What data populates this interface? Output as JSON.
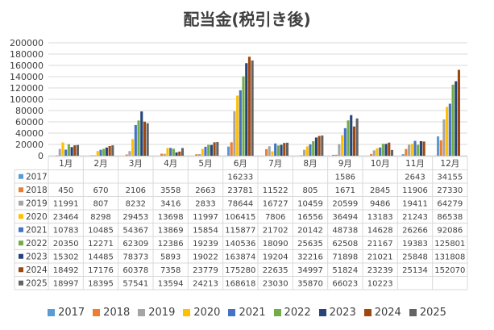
{
  "chart_data": {
    "type": "bar",
    "title": "配当金(税引き後)",
    "categories": [
      "1月",
      "2月",
      "3月",
      "4月",
      "5月",
      "6月",
      "7月",
      "8月",
      "9月",
      "10月",
      "11月",
      "12月"
    ],
    "ylim": [
      0,
      200000
    ],
    "yticks": [
      "0",
      "20000",
      "40000",
      "60000",
      "80000",
      "100000",
      "120000",
      "140000",
      "160000",
      "180000",
      "200000"
    ],
    "grid": true,
    "legend_position": "bottom",
    "series": [
      {
        "name": "2017",
        "color": "#5b9bd5",
        "values": [
          null,
          null,
          null,
          null,
          null,
          16233,
          null,
          null,
          1586,
          null,
          2643,
          34155
        ]
      },
      {
        "name": "2018",
        "color": "#ed7d31",
        "values": [
          450,
          670,
          2106,
          3558,
          2663,
          23781,
          11522,
          805,
          1671,
          2845,
          11906,
          27330
        ]
      },
      {
        "name": "2019",
        "color": "#a5a5a5",
        "values": [
          11991,
          807,
          8232,
          3416,
          2833,
          78644,
          16727,
          10459,
          20599,
          9486,
          19411,
          64279
        ]
      },
      {
        "name": "2020",
        "color": "#ffc000",
        "values": [
          23464,
          8298,
          29453,
          13698,
          11997,
          106415,
          7806,
          16556,
          36494,
          13183,
          21243,
          86538
        ]
      },
      {
        "name": "2021",
        "color": "#4472c4",
        "values": [
          10783,
          10485,
          54367,
          13869,
          15854,
          115877,
          21702,
          20142,
          48738,
          14628,
          26266,
          92086
        ]
      },
      {
        "name": "2022",
        "color": "#70ad47",
        "values": [
          20350,
          12271,
          62309,
          12386,
          19239,
          140536,
          18090,
          25635,
          62508,
          21167,
          19383,
          125801
        ]
      },
      {
        "name": "2023",
        "color": "#264478",
        "values": [
          15302,
          14485,
          78373,
          5893,
          19022,
          163874,
          19204,
          32216,
          71898,
          21021,
          25848,
          131808
        ]
      },
      {
        "name": "2024",
        "color": "#9e480e",
        "values": [
          18492,
          17176,
          60378,
          7358,
          23779,
          175280,
          22635,
          34997,
          51824,
          23239,
          25134,
          152070
        ]
      },
      {
        "name": "2025",
        "color": "#636363",
        "values": [
          18997,
          18395,
          57541,
          13594,
          24213,
          168618,
          23030,
          35870,
          66023,
          10223,
          null,
          null
        ]
      }
    ]
  }
}
